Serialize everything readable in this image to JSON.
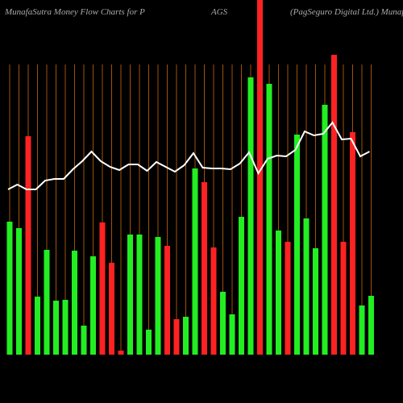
{
  "chart_data": {
    "type": "bar",
    "title": "MunafaSutra  Money Flow  Charts for P",
    "title_center": "AGS",
    "title_right": "(PagSeguro  Digital Ltd.) MunafaSutra.com",
    "categories": [
      null,
      null,
      null,
      null,
      null,
      null,
      null,
      null,
      null,
      null,
      null,
      null,
      null,
      null,
      null,
      null,
      null,
      null,
      null,
      null,
      null,
      null,
      null,
      null,
      null,
      null,
      null,
      null,
      null,
      null,
      null,
      null,
      null,
      null,
      null,
      null,
      null,
      null,
      null,
      null
    ],
    "values": [
      165,
      157,
      271,
      72,
      130,
      67,
      68,
      129,
      36,
      122,
      164,
      114,
      5,
      149,
      149,
      31,
      146,
      135,
      44,
      47,
      231,
      214,
      133,
      78,
      50,
      171,
      344,
      440,
      336,
      154,
      140,
      273,
      169,
      132,
      310,
      372,
      140,
      276,
      61,
      73
    ],
    "bar_colors": [
      "#22ee22",
      "#22ee22",
      "#ff2222",
      "#22ee22",
      "#22ee22",
      "#22ee22",
      "#22ee22",
      "#22ee22",
      "#22ee22",
      "#22ee22",
      "#ff2222",
      "#ff2222",
      "#ff2222",
      "#22ee22",
      "#22ee22",
      "#22ee22",
      "#22ee22",
      "#ff2222",
      "#ff2222",
      "#22ee22",
      "#22ee22",
      "#ff2222",
      "#ff2222",
      "#22ee22",
      "#22ee22",
      "#22ee22",
      "#22ee22",
      "#ff2222",
      "#22ee22",
      "#22ee22",
      "#ff2222",
      "#22ee22",
      "#22ee22",
      "#22ee22",
      "#22ee22",
      "#ff2222",
      "#ff2222",
      "#ff2222",
      "#22ee22",
      "#22ee22"
    ],
    "line": {
      "color": "#ffffff",
      "values": [
        205,
        211,
        205,
        205,
        216,
        218,
        218,
        230,
        240,
        252,
        240,
        233,
        229,
        236,
        236,
        228,
        239,
        233,
        227,
        235,
        250,
        232,
        231,
        231,
        230,
        237,
        251,
        225,
        243,
        247,
        246,
        254,
        277,
        272,
        274,
        288,
        267,
        268,
        246,
        252
      ]
    },
    "ylim": [
      0,
      440
    ],
    "grid_color": "#a0520a"
  }
}
